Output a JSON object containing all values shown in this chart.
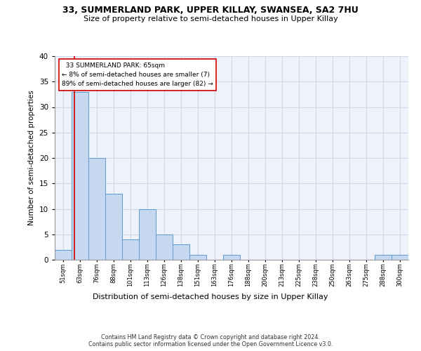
{
  "title1": "33, SUMMERLAND PARK, UPPER KILLAY, SWANSEA, SA2 7HU",
  "title2": "Size of property relative to semi-detached houses in Upper Killay",
  "xlabel": "Distribution of semi-detached houses by size in Upper Killay",
  "ylabel": "Number of semi-detached properties",
  "footer": "Contains HM Land Registry data © Crown copyright and database right 2024.\nContains public sector information licensed under the Open Government Licence v3.0.",
  "bin_labels": [
    "51sqm",
    "63sqm",
    "76sqm",
    "88sqm",
    "101sqm",
    "113sqm",
    "126sqm",
    "138sqm",
    "151sqm",
    "163sqm",
    "176sqm",
    "188sqm",
    "200sqm",
    "213sqm",
    "225sqm",
    "238sqm",
    "250sqm",
    "263sqm",
    "275sqm",
    "288sqm",
    "300sqm"
  ],
  "bar_values": [
    2,
    33,
    20,
    13,
    4,
    10,
    5,
    3,
    1,
    0,
    1,
    0,
    0,
    0,
    0,
    0,
    0,
    0,
    0,
    1,
    1
  ],
  "bar_color": "#c5d8f0",
  "bar_edge_color": "#5b9bd5",
  "subject_sqm": 65,
  "subject_label": "33 SUMMERLAND PARK: 65sqm",
  "pct_smaller": 8,
  "pct_larger": 89,
  "count_smaller": 7,
  "count_larger": 82,
  "red_line_color": "#cc0000",
  "grid_color": "#d0d8e8",
  "background_color": "#eef2fa",
  "ylim_max": 38,
  "yticks": [
    0,
    5,
    10,
    15,
    20,
    25,
    30,
    35,
    40
  ]
}
